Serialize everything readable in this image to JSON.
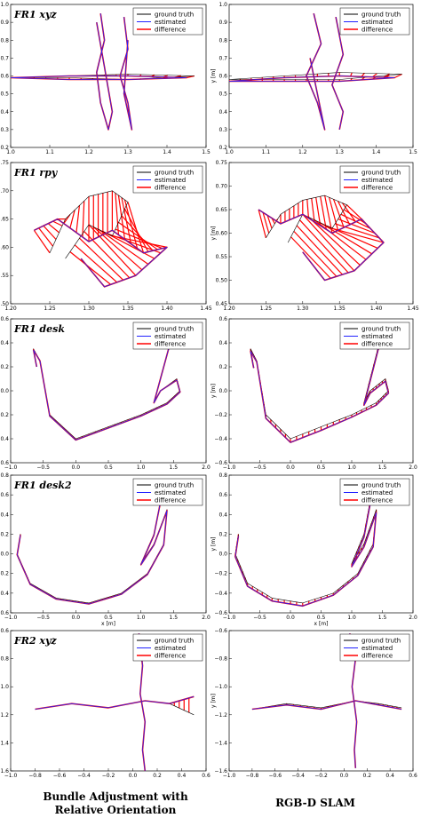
{
  "column_labels": {
    "left": {
      "line1": "Bundle Adjustment with",
      "line2": "Relative Orientation"
    },
    "right": {
      "line1": "RGB-D SLAM"
    }
  },
  "legend": [
    "ground truth",
    "estimated",
    "difference"
  ],
  "colors": {
    "ground_truth": "#000000",
    "estimated": "#2222ff",
    "difference": "#ff0000"
  },
  "chart_data": [
    {
      "type": "line",
      "row": 0,
      "col": 0,
      "title": "FR1 xyz",
      "xlabel": "",
      "ylabel": "",
      "xlim": [
        1.0,
        1.5
      ],
      "ylim": [
        0.2,
        1.0
      ],
      "xticks": [
        "1.0",
        "1.1",
        "1.2",
        "1.3",
        "1.4",
        "1.5"
      ],
      "yticks": [
        "0.2",
        "0.3",
        "0.4",
        "0.5",
        "0.6",
        "0.7",
        "0.8",
        "0.9",
        "1.0"
      ],
      "legend_position": "top-right",
      "grid": false,
      "series": [
        {
          "name": "ground truth",
          "x": [
            1.0,
            1.15,
            1.3,
            1.47,
            1.3,
            1.15,
            1.0
          ],
          "y": [
            0.59,
            0.6,
            0.61,
            0.6,
            0.58,
            0.59,
            0.59
          ]
        },
        {
          "name": "estimated",
          "x": [
            1.0,
            1.15,
            1.3,
            1.45,
            1.3,
            1.15,
            1.0
          ],
          "y": [
            0.59,
            0.6,
            0.6,
            0.59,
            0.58,
            0.58,
            0.59
          ]
        },
        {
          "name": "estimated",
          "x": [
            1.23,
            1.24,
            1.22,
            1.23,
            1.25,
            1.26,
            1.24,
            1.22
          ],
          "y": [
            0.95,
            0.8,
            0.62,
            0.45,
            0.3,
            0.4,
            0.65,
            0.9
          ]
        },
        {
          "name": "estimated",
          "x": [
            1.29,
            1.3,
            1.28,
            1.3,
            1.31,
            1.29,
            1.3
          ],
          "y": [
            0.93,
            0.75,
            0.6,
            0.45,
            0.3,
            0.5,
            0.8
          ]
        }
      ]
    },
    {
      "type": "line",
      "row": 0,
      "col": 1,
      "title": "",
      "xlabel": "",
      "ylabel": "y [m]",
      "xlim": [
        1.0,
        1.5
      ],
      "ylim": [
        0.2,
        1.0
      ],
      "xticks": [
        "1.0",
        "1.1",
        "1.2",
        "1.3",
        "1.4",
        "1.5"
      ],
      "yticks": [
        "0.2",
        "0.3",
        "0.4",
        "0.5",
        "0.6",
        "0.7",
        "0.8",
        "0.9",
        "1.0"
      ],
      "legend_position": "top-right",
      "grid": false,
      "series": [
        {
          "name": "ground truth",
          "x": [
            1.0,
            1.15,
            1.3,
            1.47,
            1.3,
            1.15,
            1.0
          ],
          "y": [
            0.58,
            0.6,
            0.62,
            0.61,
            0.58,
            0.58,
            0.58
          ]
        },
        {
          "name": "estimated",
          "x": [
            1.0,
            1.15,
            1.3,
            1.45,
            1.3,
            1.15,
            1.0
          ],
          "y": [
            0.57,
            0.59,
            0.6,
            0.59,
            0.57,
            0.57,
            0.57
          ]
        },
        {
          "name": "estimated",
          "x": [
            1.23,
            1.25,
            1.21,
            1.24,
            1.26,
            1.22
          ],
          "y": [
            0.95,
            0.78,
            0.6,
            0.45,
            0.3,
            0.7
          ]
        },
        {
          "name": "estimated",
          "x": [
            1.29,
            1.31,
            1.28,
            1.31,
            1.3
          ],
          "y": [
            0.93,
            0.72,
            0.55,
            0.4,
            0.3
          ]
        }
      ]
    },
    {
      "type": "line",
      "row": 1,
      "col": 0,
      "title": "FR1 rpy",
      "xlabel": "",
      "ylabel": "",
      "xlim": [
        1.2,
        1.45
      ],
      "ylim": [
        0.5,
        0.75
      ],
      "xticks": [
        "1.20",
        "1.25",
        "1.30",
        "1.35",
        "1.40",
        "1.45"
      ],
      "yticks": [
        "0.50",
        "0.55",
        "0.60",
        "0.65",
        "0.70",
        "0.75"
      ],
      "legend_position": "top-right",
      "grid": false,
      "series": [
        {
          "name": "ground truth",
          "x": [
            1.25,
            1.27,
            1.3,
            1.33,
            1.35,
            1.33,
            1.3,
            1.27
          ],
          "y": [
            0.59,
            0.65,
            0.69,
            0.7,
            0.68,
            0.62,
            0.64,
            0.58
          ]
        },
        {
          "name": "estimated",
          "x": [
            1.23,
            1.26,
            1.3,
            1.33,
            1.37,
            1.4,
            1.36,
            1.32,
            1.29
          ],
          "y": [
            0.63,
            0.65,
            0.61,
            0.63,
            0.59,
            0.6,
            0.55,
            0.53,
            0.58
          ]
        }
      ]
    },
    {
      "type": "line",
      "row": 1,
      "col": 1,
      "title": "",
      "xlabel": "",
      "ylabel": "y [m]",
      "xlim": [
        1.2,
        1.45
      ],
      "ylim": [
        0.45,
        0.75
      ],
      "xticks": [
        "1.20",
        "1.25",
        "1.30",
        "1.35",
        "1.40",
        "1.45"
      ],
      "yticks": [
        "0.45",
        "0.50",
        "0.55",
        "0.60",
        "0.65",
        "0.70",
        "0.75"
      ],
      "legend_position": "top-right",
      "grid": false,
      "series": [
        {
          "name": "ground truth",
          "x": [
            1.25,
            1.27,
            1.3,
            1.33,
            1.36,
            1.34,
            1.3,
            1.28
          ],
          "y": [
            0.59,
            0.64,
            0.67,
            0.68,
            0.66,
            0.61,
            0.64,
            0.58
          ]
        },
        {
          "name": "estimated",
          "x": [
            1.24,
            1.27,
            1.3,
            1.34,
            1.38,
            1.41,
            1.37,
            1.33,
            1.3
          ],
          "y": [
            0.65,
            0.62,
            0.64,
            0.6,
            0.63,
            0.58,
            0.52,
            0.5,
            0.56
          ]
        }
      ]
    },
    {
      "type": "line",
      "row": 2,
      "col": 0,
      "title": "FR1 desk",
      "xlabel": "",
      "ylabel": "",
      "xlim": [
        -1.0,
        2.0
      ],
      "ylim": [
        -0.6,
        0.6
      ],
      "xticks": [
        "−1.0",
        "−0.5",
        "0.0",
        "0.5",
        "1.0",
        "1.5",
        "2.0"
      ],
      "yticks": [
        "−0.6",
        "−0.4",
        "−0.2",
        "0.0",
        "0.2",
        "0.4",
        "0.6"
      ],
      "legend_position": "top-right",
      "grid": false,
      "series": [
        {
          "name": "ground truth",
          "x": [
            -0.6,
            -0.65,
            -0.55,
            -0.4,
            0.0,
            0.5,
            1.0,
            1.4,
            1.6,
            1.55,
            1.3,
            1.2,
            1.4,
            1.5
          ],
          "y": [
            0.2,
            0.35,
            0.25,
            -0.2,
            -0.4,
            -0.3,
            -0.2,
            -0.1,
            0.0,
            0.1,
            0.0,
            -0.1,
            0.3,
            0.5
          ]
        },
        {
          "name": "estimated",
          "x": [
            -0.6,
            -0.65,
            -0.55,
            -0.4,
            0.0,
            0.5,
            1.0,
            1.4,
            1.6,
            1.55,
            1.3,
            1.2,
            1.4,
            1.5
          ],
          "y": [
            0.2,
            0.34,
            0.25,
            -0.21,
            -0.41,
            -0.31,
            -0.21,
            -0.11,
            -0.01,
            0.09,
            0.0,
            -0.1,
            0.3,
            0.5
          ]
        }
      ]
    },
    {
      "type": "line",
      "row": 2,
      "col": 1,
      "title": "",
      "xlabel": "",
      "ylabel": "y [m]",
      "xlim": [
        -1.0,
        2.0
      ],
      "ylim": [
        -0.6,
        0.6
      ],
      "xticks": [
        "−1.0",
        "−0.5",
        "0.0",
        "0.5",
        "1.0",
        "1.5",
        "2.0"
      ],
      "yticks": [
        "−0.6",
        "−0.4",
        "−0.2",
        "0.0",
        "0.2",
        "0.4",
        "0.6"
      ],
      "legend_position": "top-right",
      "grid": false,
      "series": [
        {
          "name": "ground truth",
          "x": [
            -0.6,
            -0.65,
            -0.55,
            -0.4,
            0.0,
            0.5,
            1.0,
            1.4,
            1.6,
            1.55,
            1.3,
            1.2,
            1.4,
            1.5
          ],
          "y": [
            0.2,
            0.35,
            0.25,
            -0.2,
            -0.4,
            -0.3,
            -0.2,
            -0.1,
            0.0,
            0.1,
            0.0,
            -0.1,
            0.3,
            0.5
          ]
        },
        {
          "name": "estimated",
          "x": [
            -0.6,
            -0.65,
            -0.55,
            -0.4,
            0.0,
            0.5,
            1.0,
            1.4,
            1.6,
            1.55,
            1.3,
            1.2,
            1.4,
            1.5
          ],
          "y": [
            0.19,
            0.33,
            0.24,
            -0.23,
            -0.43,
            -0.33,
            -0.22,
            -0.12,
            -0.02,
            0.08,
            -0.02,
            -0.12,
            0.28,
            0.48
          ]
        }
      ]
    },
    {
      "type": "line",
      "row": 3,
      "col": 0,
      "title": "FR1 desk2",
      "xlabel": "x [m]",
      "ylabel": "",
      "xlim": [
        -1.0,
        2.0
      ],
      "ylim": [
        -0.6,
        0.8
      ],
      "xticks": [
        "−1.0",
        "−0.5",
        "0.0",
        "0.5",
        "1.0",
        "1.5",
        "2.0"
      ],
      "yticks": [
        "−0.6",
        "−0.4",
        "−0.2",
        "0.0",
        "0.2",
        "0.4",
        "0.6",
        "0.8"
      ],
      "legend_position": "top-right",
      "grid": false,
      "series": [
        {
          "name": "ground truth",
          "x": [
            -0.85,
            -0.9,
            -0.7,
            -0.3,
            0.2,
            0.7,
            1.1,
            1.35,
            1.4,
            1.2,
            1.0,
            1.2,
            1.35
          ],
          "y": [
            0.2,
            0.0,
            -0.3,
            -0.45,
            -0.5,
            -0.4,
            -0.2,
            0.1,
            0.45,
            0.1,
            -0.1,
            0.2,
            0.7
          ]
        },
        {
          "name": "estimated",
          "x": [
            -0.85,
            -0.9,
            -0.7,
            -0.3,
            0.2,
            0.7,
            1.1,
            1.35,
            1.4,
            1.2,
            1.0,
            1.2,
            1.35
          ],
          "y": [
            0.19,
            -0.01,
            -0.31,
            -0.46,
            -0.51,
            -0.41,
            -0.21,
            0.09,
            0.44,
            0.09,
            -0.11,
            0.19,
            0.69
          ]
        }
      ]
    },
    {
      "type": "line",
      "row": 3,
      "col": 1,
      "title": "",
      "xlabel": "x [m]",
      "ylabel": "y [m]",
      "xlim": [
        -1.0,
        2.0
      ],
      "ylim": [
        -0.6,
        0.8
      ],
      "xticks": [
        "−1.0",
        "−0.5",
        "0.0",
        "0.5",
        "1.0",
        "1.5",
        "2.0"
      ],
      "yticks": [
        "−0.6",
        "−0.4",
        "−0.2",
        "0.0",
        "0.2",
        "0.4",
        "0.6",
        "0.8"
      ],
      "legend_position": "top-right",
      "grid": false,
      "series": [
        {
          "name": "ground truth",
          "x": [
            -0.85,
            -0.9,
            -0.7,
            -0.3,
            0.2,
            0.7,
            1.1,
            1.35,
            1.4,
            1.2,
            1.0,
            1.2,
            1.35
          ],
          "y": [
            0.2,
            0.0,
            -0.3,
            -0.45,
            -0.5,
            -0.4,
            -0.2,
            0.1,
            0.45,
            0.1,
            -0.1,
            0.2,
            0.7
          ]
        },
        {
          "name": "estimated",
          "x": [
            -0.85,
            -0.9,
            -0.7,
            -0.3,
            0.2,
            0.7,
            1.1,
            1.35,
            1.4,
            1.2,
            1.0,
            1.2,
            1.35
          ],
          "y": [
            0.18,
            -0.03,
            -0.33,
            -0.48,
            -0.53,
            -0.42,
            -0.22,
            0.07,
            0.42,
            0.07,
            -0.13,
            0.17,
            0.67
          ]
        }
      ]
    },
    {
      "type": "line",
      "row": 4,
      "col": 0,
      "title": "FR2 xyz",
      "xlabel": "",
      "ylabel": "",
      "xlim": [
        -1.0,
        0.6
      ],
      "ylim": [
        -1.6,
        -0.6
      ],
      "xticks": [
        "−1.0",
        "−0.8",
        "−0.6",
        "−0.4",
        "−0.2",
        "0.0",
        "0.2",
        "0.4",
        "0.6"
      ],
      "yticks": [
        "−1.6",
        "−1.4",
        "−1.2",
        "−1.0",
        "−0.8",
        "−0.6"
      ],
      "legend_position": "top-right",
      "grid": false,
      "series": [
        {
          "name": "ground truth",
          "x": [
            -0.8,
            -0.5,
            -0.2,
            0.1,
            0.3,
            0.5
          ],
          "y": [
            -1.16,
            -1.12,
            -1.15,
            -1.1,
            -1.12,
            -1.2
          ]
        },
        {
          "name": "estimated",
          "x": [
            -0.8,
            -0.5,
            -0.2,
            0.1,
            0.3,
            0.5
          ],
          "y": [
            -1.16,
            -1.12,
            -1.15,
            -1.1,
            -1.12,
            -1.07
          ]
        },
        {
          "name": "estimated",
          "x": [
            0.05,
            0.08,
            0.06,
            0.1,
            0.08,
            0.1
          ],
          "y": [
            -0.62,
            -0.85,
            -1.05,
            -1.25,
            -1.45,
            -1.6
          ]
        }
      ]
    },
    {
      "type": "line",
      "row": 4,
      "col": 1,
      "title": "",
      "xlabel": "",
      "ylabel": "y [m]",
      "xlim": [
        -1.0,
        0.6
      ],
      "ylim": [
        -1.6,
        -0.6
      ],
      "xticks": [
        "−1.0",
        "−0.8",
        "−0.6",
        "−0.4",
        "−0.2",
        "0.0",
        "0.2",
        "0.4",
        "0.6"
      ],
      "yticks": [
        "−1.6",
        "−1.4",
        "−1.2",
        "−1.0",
        "−0.8",
        "−0.6"
      ],
      "legend_position": "top-right",
      "grid": false,
      "series": [
        {
          "name": "ground truth",
          "x": [
            -0.8,
            -0.5,
            -0.2,
            0.1,
            0.3,
            0.5
          ],
          "y": [
            -1.16,
            -1.12,
            -1.15,
            -1.1,
            -1.12,
            -1.15
          ]
        },
        {
          "name": "estimated",
          "x": [
            -0.8,
            -0.5,
            -0.2,
            0.1,
            0.3,
            0.5
          ],
          "y": [
            -1.16,
            -1.13,
            -1.16,
            -1.1,
            -1.13,
            -1.16
          ]
        },
        {
          "name": "estimated",
          "x": [
            0.05,
            0.1,
            0.07,
            0.11,
            0.09,
            0.1
          ],
          "y": [
            -0.62,
            -0.8,
            -1.0,
            -1.25,
            -1.45,
            -1.58
          ]
        }
      ]
    }
  ]
}
